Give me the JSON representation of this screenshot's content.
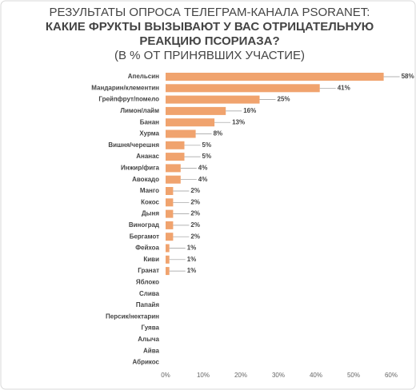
{
  "chart_data": {
    "type": "bar",
    "orientation": "horizontal",
    "title": [
      "РЕЗУЛЬТАТЫ ОПРОСА ТЕЛЕГРАМ-КАНАЛА PSORANET:",
      "КАКИЕ ФРУКТЫ ВЫЗЫВАЮТ У ВАС ОТРИЦАТЕЛЬНУЮ",
      "РЕАКЦИЮ ПСОРИАЗА?"
    ],
    "subtitle": "(В % ОТ ПРИНЯВШИХ УЧАСТИЕ)",
    "categories": [
      "Апельсин",
      "Мандарин/клементин",
      "Грейпфрут/помело",
      "Лимон/лайм",
      "Банан",
      "Хурма",
      "Вишня/черешня",
      "Ананас",
      "Инжир/фига",
      "Авокадо",
      "Манго",
      "Кокос",
      "Дыня",
      "Виноград",
      "Бергамот",
      "Фейхоа",
      "Киви",
      "Гранат",
      "Яблоко",
      "Слива",
      "Папайя",
      "Персик/нектарин",
      "Гуява",
      "Алыча",
      "Айва",
      "Абрикос"
    ],
    "values": [
      58,
      41,
      25,
      16,
      13,
      8,
      5,
      5,
      4,
      4,
      2,
      2,
      2,
      2,
      2,
      1,
      1,
      1,
      0,
      0,
      0,
      0,
      0,
      0,
      0,
      0
    ],
    "value_labels": [
      "58%",
      "41%",
      "25%",
      "16%",
      "13%",
      "8%",
      "5%",
      "5%",
      "4%",
      "4%",
      "2%",
      "2%",
      "2%",
      "2%",
      "2%",
      "1%",
      "1%",
      "1%",
      null,
      null,
      null,
      null,
      null,
      null,
      null,
      null
    ],
    "color": "#f0a36e",
    "xlim": [
      0,
      60
    ],
    "xticks": [
      {
        "value": 0,
        "label": "0%"
      },
      {
        "value": 10,
        "label": "10%"
      },
      {
        "value": 20,
        "label": "20%"
      },
      {
        "value": 30,
        "label": "30%"
      },
      {
        "value": 40,
        "label": "40%"
      },
      {
        "value": 50,
        "label": "50%"
      },
      {
        "value": 60,
        "label": "60%"
      }
    ],
    "grid": false
  }
}
